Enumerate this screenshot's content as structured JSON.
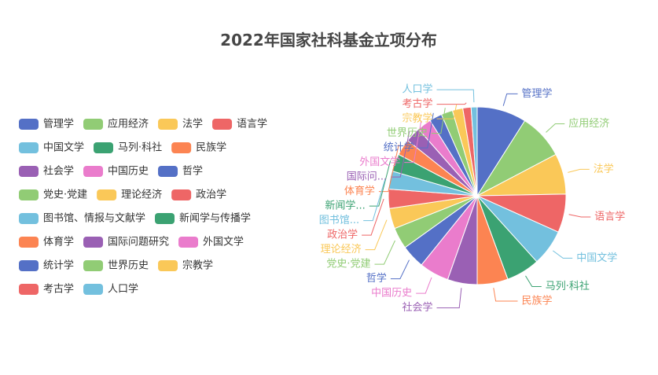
{
  "chart_data": {
    "type": "pie",
    "title": "2022年国家社科基金立项分布",
    "legend_position": "left",
    "slices": [
      {
        "label": "管理学",
        "legend_label": "管理学",
        "value": 9.0,
        "color": "#5470c6"
      },
      {
        "label": "应用经济",
        "legend_label": "应用经济",
        "value": 8.3,
        "color": "#91cc75"
      },
      {
        "label": "法学",
        "legend_label": "法学",
        "value": 7.4,
        "color": "#fac858"
      },
      {
        "label": "语言学",
        "legend_label": "语言学",
        "value": 7.0,
        "color": "#ee6666"
      },
      {
        "label": "中国文学",
        "legend_label": "中国文学",
        "value": 6.6,
        "color": "#73c0de"
      },
      {
        "label": "马列·科社",
        "legend_label": "马列·科社",
        "value": 6.1,
        "color": "#3ba272"
      },
      {
        "label": "民族学",
        "legend_label": "民族学",
        "value": 5.6,
        "color": "#fc8452"
      },
      {
        "label": "社会学",
        "legend_label": "社会学",
        "value": 5.4,
        "color": "#9a60b4"
      },
      {
        "label": "中国历史",
        "legend_label": "中国历史",
        "value": 5.4,
        "color": "#ea7ccc"
      },
      {
        "label": "哲学",
        "legend_label": "哲学",
        "value": 4.3,
        "color": "#5470c6"
      },
      {
        "label": "党史·党建",
        "legend_label": "党史·党建",
        "value": 3.9,
        "color": "#91cc75"
      },
      {
        "label": "理论经济",
        "legend_label": "理论经济",
        "value": 3.7,
        "color": "#fac858"
      },
      {
        "label": "政治学",
        "legend_label": "政治学",
        "value": 3.5,
        "color": "#ee6666"
      },
      {
        "label": "图书馆...",
        "legend_label": "图书馆、情报与文献学",
        "value": 3.3,
        "color": "#73c0de"
      },
      {
        "label": "新闻学...",
        "legend_label": "新闻学与传播学",
        "value": 3.2,
        "color": "#3ba272"
      },
      {
        "label": "体育学",
        "legend_label": "体育学",
        "value": 3.0,
        "color": "#fc8452"
      },
      {
        "label": "国际问...",
        "legend_label": "国际问题研究",
        "value": 2.8,
        "color": "#9a60b4"
      },
      {
        "label": "外国文学",
        "legend_label": "外国文学",
        "value": 2.6,
        "color": "#ea7ccc"
      },
      {
        "label": "统计学",
        "legend_label": "统计学",
        "value": 2.3,
        "color": "#5470c6"
      },
      {
        "label": "世界历史",
        "legend_label": "世界历史",
        "value": 2.1,
        "color": "#91cc75"
      },
      {
        "label": "宗教学",
        "legend_label": "宗教学",
        "value": 1.9,
        "color": "#fac858"
      },
      {
        "label": "考古学",
        "legend_label": "考古学",
        "value": 1.5,
        "color": "#ee6666"
      },
      {
        "label": "人口学",
        "legend_label": "人口学",
        "value": 1.1,
        "color": "#73c0de"
      }
    ]
  }
}
